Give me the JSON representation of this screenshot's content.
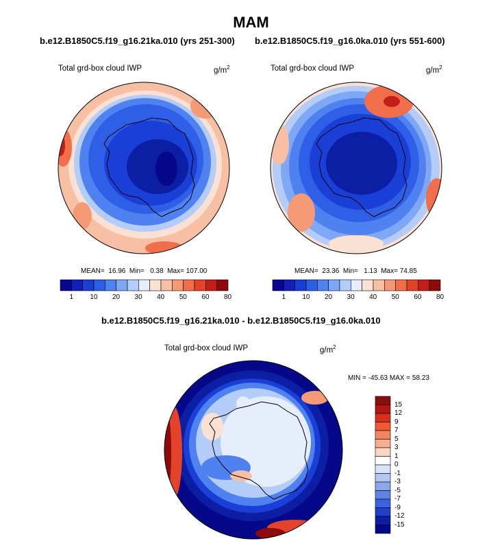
{
  "title": "MAM",
  "panels": [
    {
      "case_title": "b.e12.B1850C5.f19_g16.21ka.010 (yrs 251-300)",
      "variable_label": "Total grd-box cloud IWP",
      "units": "g/m",
      "units_exp": "2",
      "mean_label": "MEAN=",
      "mean": "16.96",
      "min_label": "Min=",
      "min": "0.38",
      "max_label": "Max=",
      "max": "107.00"
    },
    {
      "case_title": "b.e12.B1850C5.f19_g16.0ka.010 (yrs 551-600)",
      "variable_label": "Total grd-box cloud IWP",
      "units": "g/m",
      "units_exp": "2",
      "mean_label": "MEAN=",
      "mean": "23.36",
      "min_label": "Min=",
      "min": "1.13",
      "max_label": "Max=",
      "max": "74.85"
    }
  ],
  "diff_panel": {
    "case_title": "b.e12.B1850C5.f19_g16.21ka.010 - b.e12.B1850C5.f19_g16.0ka.010",
    "variable_label": "Total grd-box cloud IWP",
    "units": "g/m",
    "units_exp": "2",
    "minmax_text": "MIN = -45.63 MAX =  58.23"
  },
  "colorbar_abs": {
    "colors": [
      "#08068f",
      "#1020b8",
      "#1a3fd6",
      "#2f5fe6",
      "#4f82f0",
      "#7ea8f5",
      "#b4cdf8",
      "#e6eefb",
      "#fbe1d4",
      "#f7c0a5",
      "#f59a77",
      "#f06e4a",
      "#e2432a",
      "#c21f16",
      "#8f0a0a"
    ],
    "labels": [
      "1",
      "10",
      "20",
      "30",
      "40",
      "50",
      "60",
      "80"
    ]
  },
  "colorbar_diff": {
    "colors": [
      "#8a0e0e",
      "#b5160f",
      "#d8301a",
      "#ee5a33",
      "#f38660",
      "#f6ae8e",
      "#f9d6c3",
      "#ffffff",
      "#d6e3f8",
      "#b2c8f3",
      "#8aa8ec",
      "#5f84e6",
      "#3b63e0",
      "#1f3fcf",
      "#0c1ea4",
      "#06088a"
    ],
    "labels": [
      "15",
      "12",
      "9",
      "7",
      "5",
      "3",
      "1",
      "0",
      "-1",
      "-3",
      "-5",
      "-7",
      "-9",
      "-12",
      "-15"
    ]
  },
  "map_colors": {
    "deep": "#06088a",
    "blue1": "#0c1ea4",
    "blue2": "#1a3fd6",
    "blue3": "#2f5fe6",
    "blue4": "#4f82f0",
    "blue5": "#7ea8f5",
    "blue6": "#b4cdf8",
    "pale": "#e6eefb",
    "pink1": "#fbe1d4",
    "pink2": "#f7c0a5",
    "orange1": "#f59a77",
    "orange2": "#f06e4a",
    "red1": "#e2432a",
    "red2": "#c21f16",
    "dark_red": "#8f0a0a"
  },
  "chart_data": [
    {
      "type": "heatmap",
      "projection": "south polar stereographic",
      "title": "b.e12.B1850C5.f19_g16.21ka.010 (yrs 251-300)",
      "variable": "Total grd-box cloud IWP",
      "units": "g/m2",
      "season": "MAM",
      "stats": {
        "mean": 16.96,
        "min": 0.38,
        "max": 107.0
      },
      "levels": [
        1,
        10,
        20,
        30,
        40,
        50,
        60,
        80
      ]
    },
    {
      "type": "heatmap",
      "projection": "south polar stereographic",
      "title": "b.e12.B1850C5.f19_g16.0ka.010 (yrs 551-600)",
      "variable": "Total grd-box cloud IWP",
      "units": "g/m2",
      "season": "MAM",
      "stats": {
        "mean": 23.36,
        "min": 1.13,
        "max": 74.85
      },
      "levels": [
        1,
        10,
        20,
        30,
        40,
        50,
        60,
        80
      ]
    },
    {
      "type": "heatmap",
      "projection": "south polar stereographic",
      "title": "b.e12.B1850C5.f19_g16.21ka.010 - b.e12.B1850C5.f19_g16.0ka.010",
      "variable": "Total grd-box cloud IWP",
      "units": "g/m2",
      "stats": {
        "min": -45.63,
        "max": 58.23
      },
      "levels": [
        -15,
        -12,
        -9,
        -7,
        -5,
        -3,
        -1,
        0,
        1,
        3,
        5,
        7,
        9,
        12,
        15
      ]
    }
  ]
}
